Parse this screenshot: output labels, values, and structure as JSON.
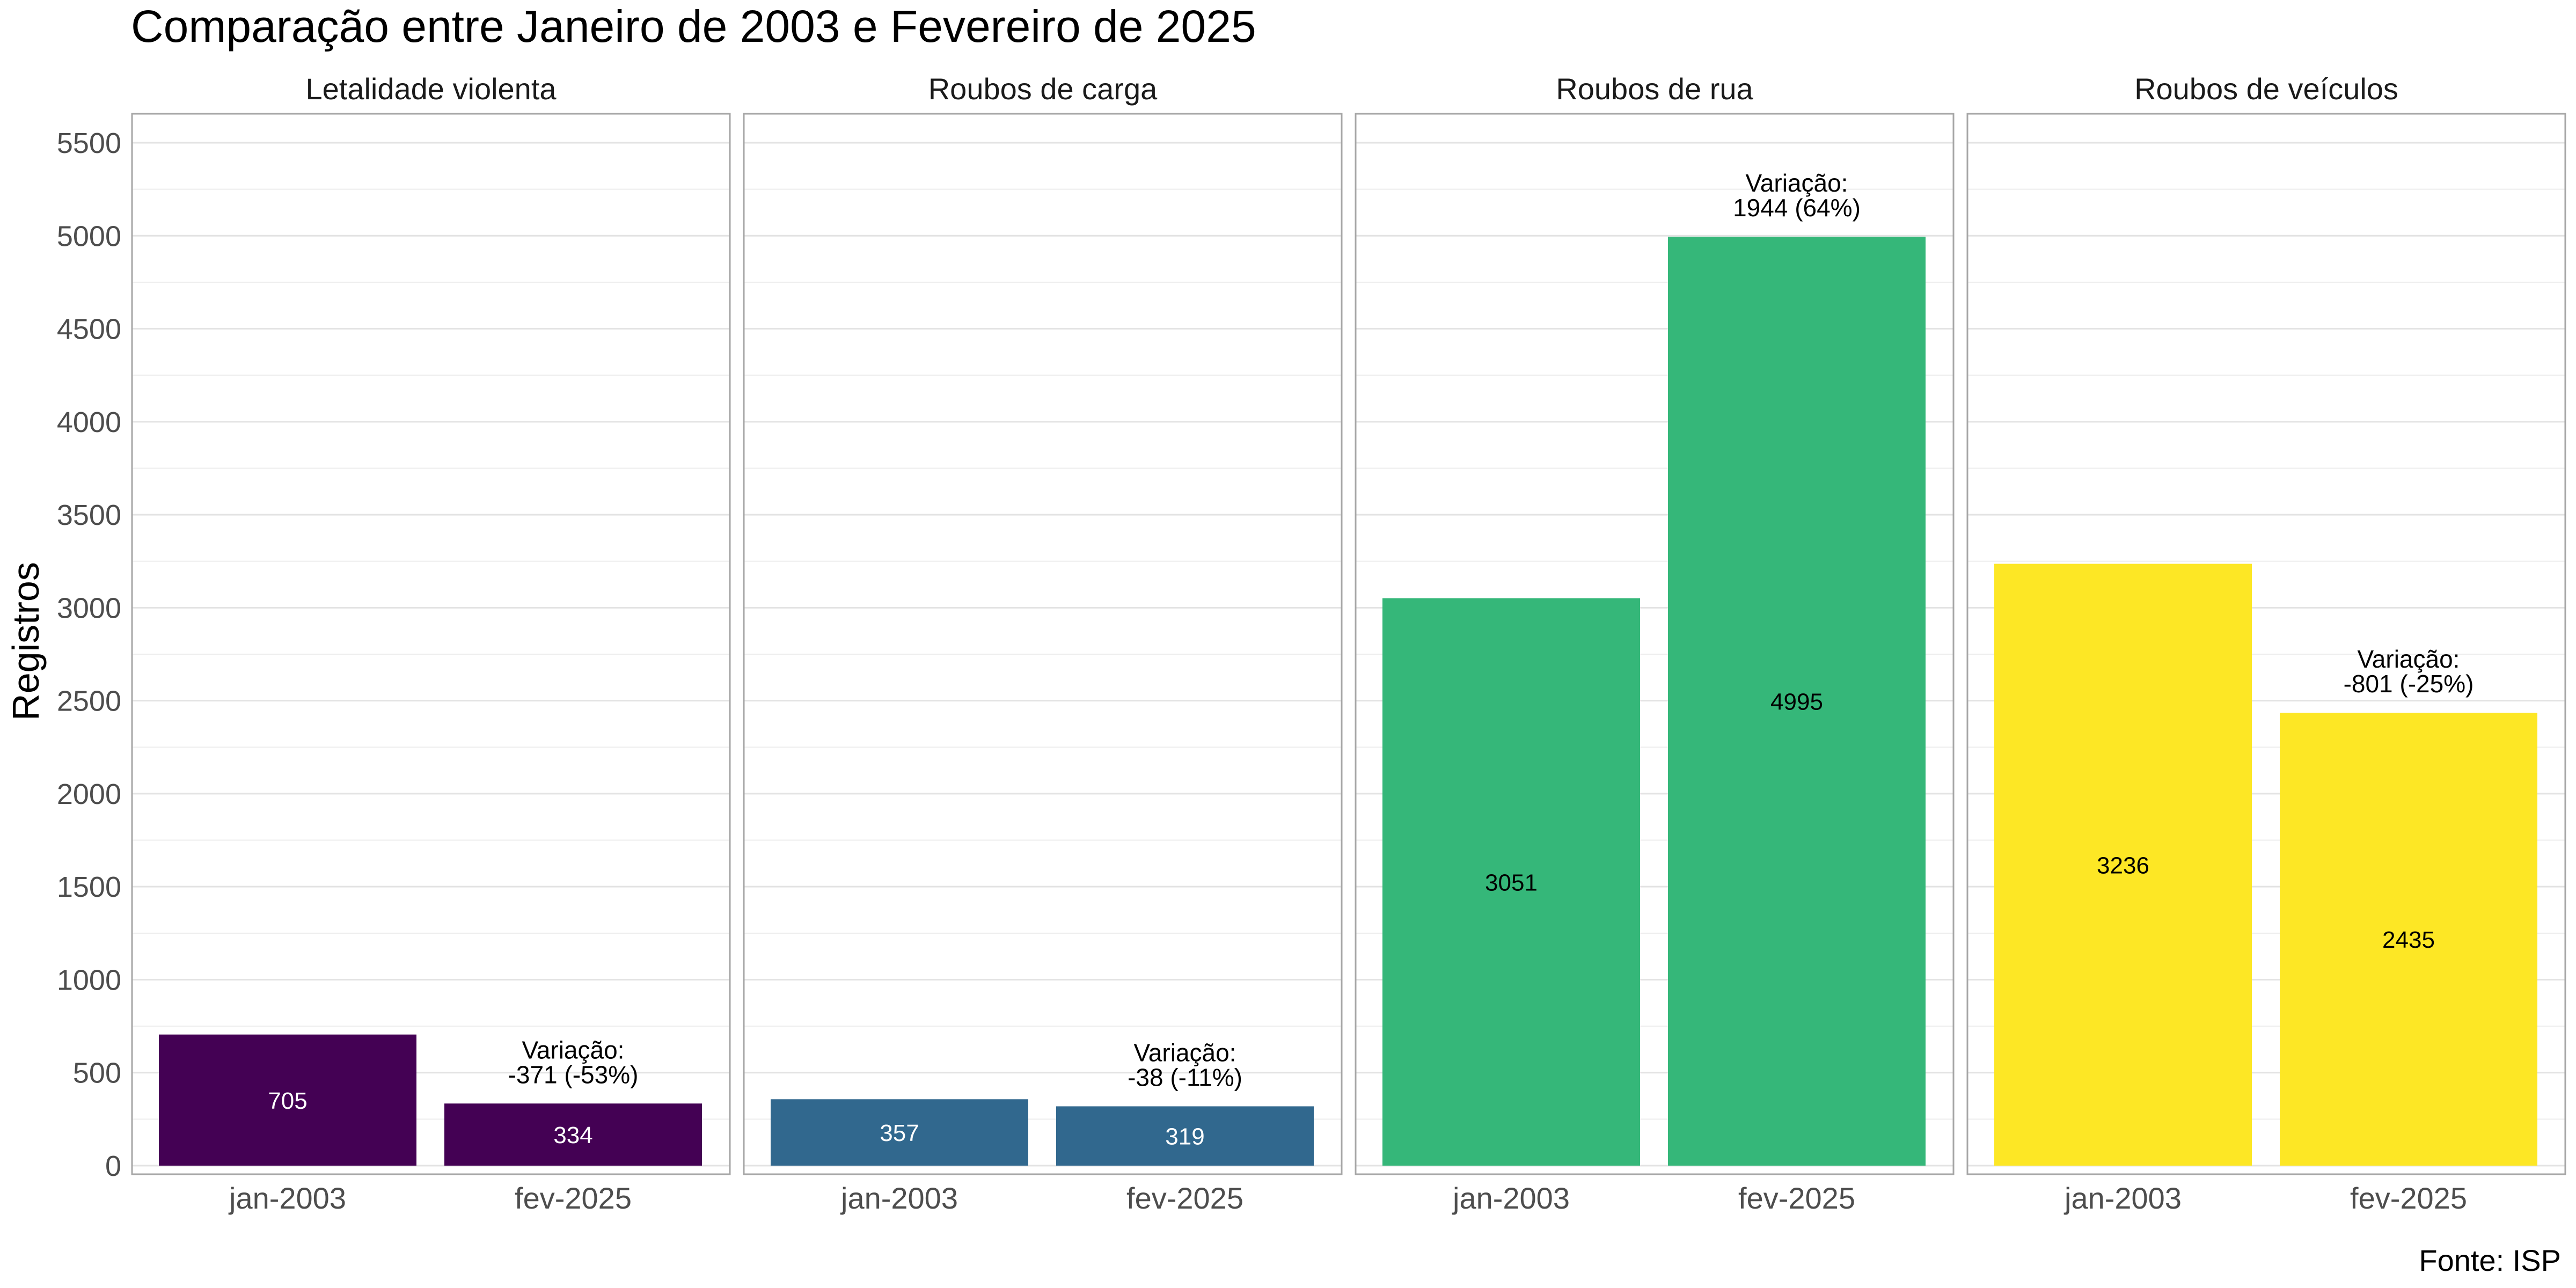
{
  "chart_data": {
    "type": "bar",
    "title": "Comparação entre Janeiro de 2003 e Fevereiro de 2025",
    "ylabel": "Registros",
    "xlabel": "",
    "caption": "Fonte: ISP",
    "ylim": [
      0,
      5650
    ],
    "yticks": [
      0,
      500,
      1000,
      1500,
      2000,
      2500,
      3000,
      3500,
      4000,
      4500,
      5000,
      5500
    ],
    "categories": [
      "jan-2003",
      "fev-2025"
    ],
    "grid": true,
    "legend": "none",
    "panels": [
      {
        "name": "Letalidade violenta",
        "color": "#440154",
        "label_color": "#ffffff",
        "values": [
          705,
          334
        ],
        "variation_title": "Variação:",
        "variation": "-371 (-53%)"
      },
      {
        "name": "Roubos de carga",
        "color": "#31688e",
        "label_color": "#ffffff",
        "values": [
          357,
          319
        ],
        "variation_title": "Variação:",
        "variation": "-38 (-11%)"
      },
      {
        "name": "Roubos de rua",
        "color": "#35b779",
        "label_color": "#000000",
        "values": [
          3051,
          4995
        ],
        "variation_title": "Variação:",
        "variation": "1944 (64%)"
      },
      {
        "name": "Roubos de veículos",
        "color": "#fde725",
        "label_color": "#000000",
        "values": [
          3236,
          2435
        ],
        "variation_title": "Variação:",
        "variation": "-801 (-25%)"
      }
    ]
  }
}
